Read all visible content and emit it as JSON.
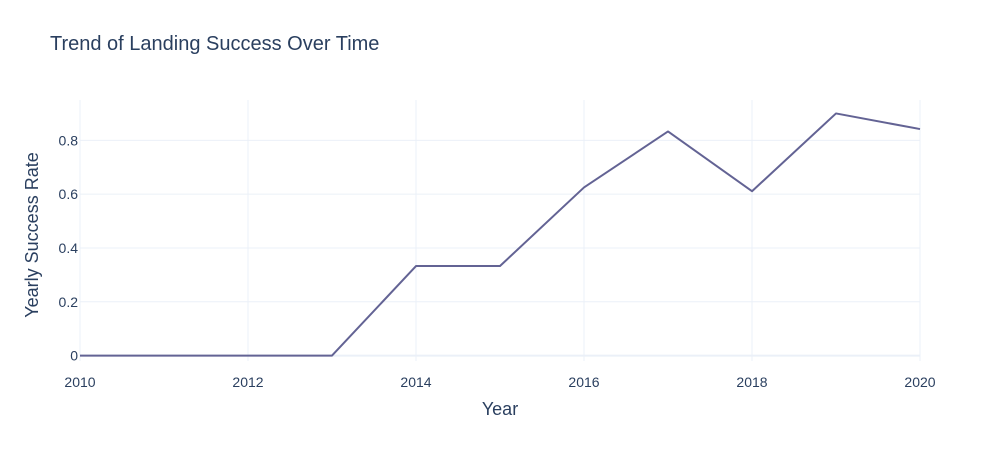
{
  "chart_data": {
    "type": "line",
    "title": "Trend of Landing Success Over Time",
    "xlabel": "Year",
    "ylabel": "Yearly Success Rate",
    "x": [
      2010,
      2012,
      2013,
      2014,
      2015,
      2016,
      2017,
      2018,
      2019,
      2020
    ],
    "series": [
      {
        "values": [
          0,
          0,
          0,
          0.333,
          0.333,
          0.625,
          0.833,
          0.611,
          0.9,
          0.842
        ]
      }
    ],
    "xlim": [
      2010,
      2020
    ],
    "ylim": [
      -0.02,
      0.95
    ],
    "xticks": [
      2010,
      2012,
      2014,
      2016,
      2018,
      2020
    ],
    "yticks": [
      0,
      0.2,
      0.4,
      0.6,
      0.8
    ],
    "ytick_labels": [
      "0",
      "0.2",
      "0.4",
      "0.6",
      "0.8"
    ],
    "grid": true,
    "line_color": "#636394",
    "grid_color": "#ebf0f8"
  }
}
